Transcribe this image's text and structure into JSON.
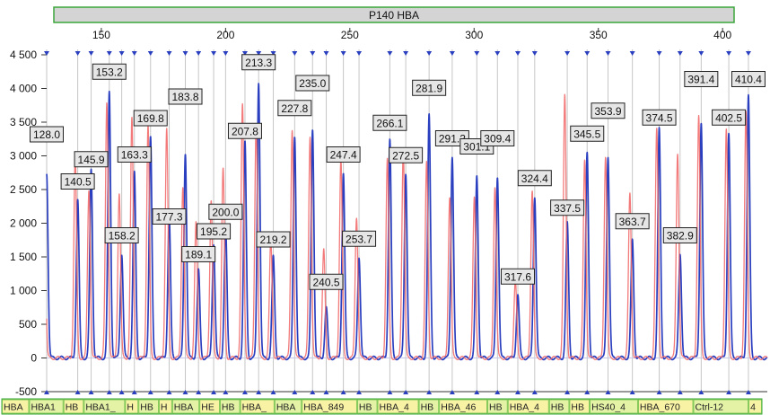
{
  "title": "P140 HBA",
  "chart_data": {
    "type": "line",
    "title": "P140 HBA",
    "xlabel": "",
    "ylabel": "",
    "xlim": [
      128,
      418
    ],
    "ylim": [
      -500,
      4500
    ],
    "x_ticks": [
      150,
      200,
      250,
      300,
      350,
      400
    ],
    "y_ticks": [
      -500,
      0,
      500,
      1000,
      1500,
      2000,
      2500,
      3000,
      3500,
      4000,
      4500
    ],
    "y_tick_labels": [
      "-500",
      "0",
      "500",
      "1 000",
      "1 500",
      "2 000",
      "2 500",
      "3 000",
      "3 500",
      "4 000",
      "4 500"
    ],
    "grid": "vertical lines at peaks",
    "series": [
      {
        "color": "#2a3fbf",
        "peaks": [
          {
            "x": 128.0,
            "height": 2750
          },
          {
            "x": 140.5,
            "height": 2350
          },
          {
            "x": 145.9,
            "height": 2800
          },
          {
            "x": 153.2,
            "height": 3950
          },
          {
            "x": 158.2,
            "height": 1550
          },
          {
            "x": 163.3,
            "height": 2750
          },
          {
            "x": 169.8,
            "height": 3300
          },
          {
            "x": 177.3,
            "height": 2100
          },
          {
            "x": 183.8,
            "height": 3050
          },
          {
            "x": 189.1,
            "height": 1300
          },
          {
            "x": 195.2,
            "height": 1700
          },
          {
            "x": 200.0,
            "height": 1950
          },
          {
            "x": 207.8,
            "height": 3200
          },
          {
            "x": 213.3,
            "height": 4100
          },
          {
            "x": 219.2,
            "height": 1500
          },
          {
            "x": 227.8,
            "height": 3300
          },
          {
            "x": 235.0,
            "height": 3400
          },
          {
            "x": 240.5,
            "height": 750
          },
          {
            "x": 247.4,
            "height": 2750
          },
          {
            "x": 253.7,
            "height": 1500
          },
          {
            "x": 266.1,
            "height": 3250
          },
          {
            "x": 272.5,
            "height": 2750
          },
          {
            "x": 281.9,
            "height": 3600
          },
          {
            "x": 291.2,
            "height": 3000
          },
          {
            "x": 301.1,
            "height": 2700
          },
          {
            "x": 309.4,
            "height": 2700
          },
          {
            "x": 317.6,
            "height": 950
          },
          {
            "x": 324.4,
            "height": 2400
          },
          {
            "x": 337.5,
            "height": 2000
          },
          {
            "x": 345.5,
            "height": 3050
          },
          {
            "x": 353.9,
            "height": 3000
          },
          {
            "x": 363.7,
            "height": 1750
          },
          {
            "x": 374.5,
            "height": 3400
          },
          {
            "x": 382.9,
            "height": 1550
          },
          {
            "x": 391.4,
            "height": 3500
          },
          {
            "x": 402.5,
            "height": 3350
          },
          {
            "x": 410.4,
            "height": 3900
          }
        ]
      },
      {
        "color": "#f26b6b",
        "peaks": [
          {
            "x": 127.0,
            "height": 3050
          },
          {
            "x": 139.5,
            "height": 3000
          },
          {
            "x": 145.0,
            "height": 2500
          },
          {
            "x": 152.2,
            "height": 3800
          },
          {
            "x": 157.2,
            "height": 2450
          },
          {
            "x": 162.3,
            "height": 3550
          },
          {
            "x": 168.8,
            "height": 3450
          },
          {
            "x": 176.3,
            "height": 3400
          },
          {
            "x": 182.8,
            "height": 2550
          },
          {
            "x": 188.1,
            "height": 2000
          },
          {
            "x": 194.2,
            "height": 2350
          },
          {
            "x": 199.0,
            "height": 2800
          },
          {
            "x": 206.8,
            "height": 3750
          },
          {
            "x": 212.3,
            "height": 3500
          },
          {
            "x": 218.2,
            "height": 1750
          },
          {
            "x": 226.8,
            "height": 3400
          },
          {
            "x": 234.0,
            "height": 3300
          },
          {
            "x": 239.5,
            "height": 1600
          },
          {
            "x": 246.4,
            "height": 2950
          },
          {
            "x": 252.7,
            "height": 2100
          },
          {
            "x": 265.1,
            "height": 2950
          },
          {
            "x": 271.5,
            "height": 3100
          },
          {
            "x": 280.9,
            "height": 2900
          },
          {
            "x": 290.2,
            "height": 2400
          },
          {
            "x": 300.1,
            "height": 2400
          },
          {
            "x": 308.4,
            "height": 2550
          },
          {
            "x": 316.6,
            "height": 1150
          },
          {
            "x": 323.4,
            "height": 2500
          },
          {
            "x": 336.5,
            "height": 3900
          },
          {
            "x": 344.5,
            "height": 2950
          },
          {
            "x": 352.9,
            "height": 3000
          },
          {
            "x": 362.7,
            "height": 2450
          },
          {
            "x": 373.5,
            "height": 3400
          },
          {
            "x": 381.9,
            "height": 3050
          },
          {
            "x": 390.4,
            "height": 3600
          },
          {
            "x": 401.5,
            "height": 3400
          },
          {
            "x": 409.4,
            "height": 3650
          }
        ]
      }
    ],
    "peak_labels": [
      {
        "text": "128.0",
        "x": 128.0,
        "y": 3320
      },
      {
        "text": "140.5",
        "x": 140.5,
        "y": 2620
      },
      {
        "text": "145.9",
        "x": 145.9,
        "y": 2950
      },
      {
        "text": "153.2",
        "x": 153.2,
        "y": 4250
      },
      {
        "text": "158.2",
        "x": 158.2,
        "y": 1820
      },
      {
        "text": "163.3",
        "x": 163.3,
        "y": 3020
      },
      {
        "text": "169.8",
        "x": 169.8,
        "y": 3560
      },
      {
        "text": "177.3",
        "x": 177.3,
        "y": 2100
      },
      {
        "text": "183.8",
        "x": 183.8,
        "y": 3880
      },
      {
        "text": "189.1",
        "x": 189.1,
        "y": 1540
      },
      {
        "text": "195.2",
        "x": 195.2,
        "y": 1880
      },
      {
        "text": "200.0",
        "x": 200.0,
        "y": 2170
      },
      {
        "text": "207.8",
        "x": 207.8,
        "y": 3370
      },
      {
        "text": "213.3",
        "x": 213.3,
        "y": 4390
      },
      {
        "text": "219.2",
        "x": 219.2,
        "y": 1760
      },
      {
        "text": "227.8",
        "x": 227.8,
        "y": 3710
      },
      {
        "text": "235.0",
        "x": 235.0,
        "y": 4080
      },
      {
        "text": "240.5",
        "x": 240.5,
        "y": 1130
      },
      {
        "text": "247.4",
        "x": 247.4,
        "y": 3020
      },
      {
        "text": "253.7",
        "x": 253.7,
        "y": 1770
      },
      {
        "text": "266.1",
        "x": 266.1,
        "y": 3490
      },
      {
        "text": "272.5",
        "x": 272.5,
        "y": 3010
      },
      {
        "text": "281.9",
        "x": 281.9,
        "y": 4010
      },
      {
        "text": "291.2",
        "x": 291.2,
        "y": 3260
      },
      {
        "text": "301.1",
        "x": 301.1,
        "y": 3140
      },
      {
        "text": "309.4",
        "x": 309.4,
        "y": 3260
      },
      {
        "text": "317.6",
        "x": 317.6,
        "y": 1210
      },
      {
        "text": "324.4",
        "x": 324.4,
        "y": 2670
      },
      {
        "text": "337.5",
        "x": 337.5,
        "y": 2230
      },
      {
        "text": "345.5",
        "x": 345.5,
        "y": 3330
      },
      {
        "text": "353.9",
        "x": 353.9,
        "y": 3670
      },
      {
        "text": "363.7",
        "x": 363.7,
        "y": 2030
      },
      {
        "text": "374.5",
        "x": 374.5,
        "y": 3570
      },
      {
        "text": "382.9",
        "x": 382.9,
        "y": 1820
      },
      {
        "text": "391.4",
        "x": 391.4,
        "y": 4140
      },
      {
        "text": "402.5",
        "x": 402.5,
        "y": 3570
      },
      {
        "text": "410.4",
        "x": 410.4,
        "y": 4140
      }
    ],
    "markers": [
      "HBA",
      "HBA1",
      "HB",
      "HBA1_",
      "H",
      "HB",
      "H",
      "HBA",
      "HE",
      "HB",
      "HBA_",
      "HBA",
      "HBA_849",
      "HB",
      "HBA_4",
      "HB",
      "HBA_46",
      "HB",
      "HBA_4",
      "HB",
      "HB",
      "HS40_4",
      "HBA_670",
      "Ctrl-12",
      "4"
    ]
  }
}
